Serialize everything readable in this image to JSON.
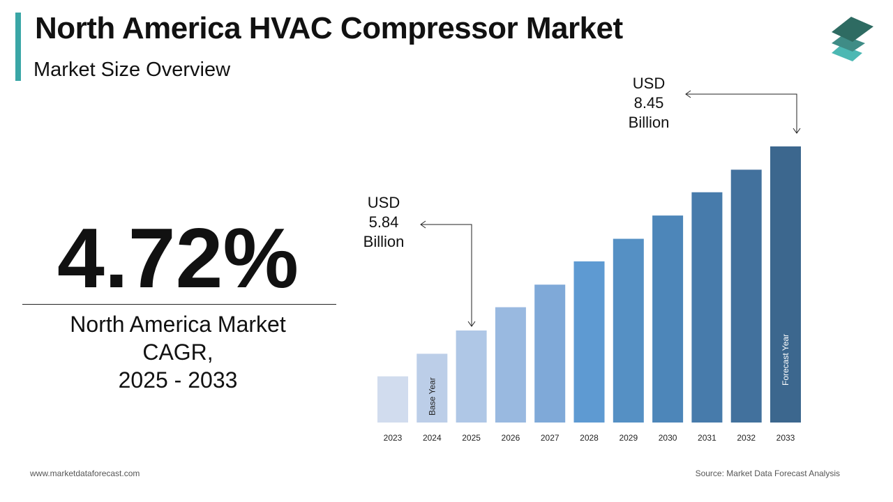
{
  "header": {
    "title": "North America HVAC Compressor Market",
    "subtitle": "Market Size Overview"
  },
  "kpi": {
    "value": "4.72%",
    "label_lines": [
      "North America Market",
      "CAGR,",
      "2025 - 2033"
    ]
  },
  "annotations": {
    "start": [
      "USD",
      "5.84",
      "Billion"
    ],
    "end": [
      "USD",
      "8.45",
      "Billion"
    ]
  },
  "footer": {
    "website": "www.marketdataforecast.com",
    "source": "Source: Market Data Forecast Analysis"
  },
  "logo_colors": [
    "#2e6b62",
    "#3f8c86",
    "#4cb8b3"
  ],
  "chart_data": {
    "type": "bar",
    "categories": [
      "2023",
      "2024",
      "2025",
      "2026",
      "2027",
      "2028",
      "2029",
      "2030",
      "2031",
      "2032",
      "2033"
    ],
    "values": [
      5.19,
      5.51,
      5.84,
      6.17,
      6.49,
      6.82,
      7.14,
      7.47,
      7.8,
      8.12,
      8.45
    ],
    "colors": [
      "#d1dcee",
      "#bccee8",
      "#afc7e6",
      "#99b9e0",
      "#7fa9d8",
      "#5e9ad2",
      "#5590c4",
      "#4d86b9",
      "#477bab",
      "#42719d",
      "#3c678e"
    ],
    "bar_labels": {
      "2024": "Base Year",
      "2033": "Forecast Year"
    },
    "units": "USD Billion",
    "grid": false
  }
}
